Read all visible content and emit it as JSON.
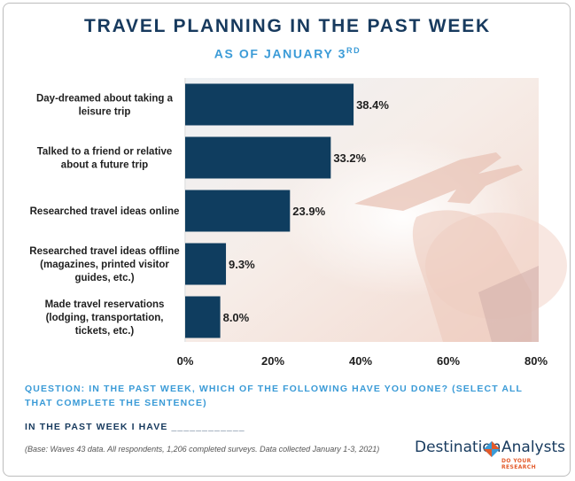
{
  "header": {
    "title": "TRAVEL PLANNING IN THE PAST WEEK",
    "subtitle": "AS OF JANUARY 3",
    "subtitle_suffix": "RD"
  },
  "chart_data": {
    "type": "bar",
    "orientation": "horizontal",
    "title": "TRAVEL PLANNING IN THE PAST WEEK",
    "subtitle": "AS OF JANUARY 3RD",
    "categories": [
      [
        "Day-dreamed about taking a",
        "leisure trip"
      ],
      [
        "Talked to a friend or relative",
        "about a future trip"
      ],
      [
        "Researched travel ideas online"
      ],
      [
        "Researched travel ideas offline",
        "(magazines, printed visitor",
        "guides, etc.)"
      ],
      [
        "Made travel reservations",
        "(lodging, transportation,",
        "tickets, etc.)"
      ]
    ],
    "values": [
      38.4,
      33.2,
      23.9,
      9.3,
      8.0
    ],
    "value_labels": [
      "38.4%",
      "33.2%",
      "23.9%",
      "9.3%",
      "8.0%"
    ],
    "xlim": [
      0,
      80
    ],
    "xticks": [
      0,
      20,
      40,
      60,
      80
    ],
    "xtick_labels": [
      "0%",
      "20%",
      "40%",
      "60%",
      "80%"
    ],
    "grid": false,
    "legend": "none",
    "bar_color": "#0f3d5f"
  },
  "footer": {
    "question": "QUESTION: IN THE PAST WEEK, WHICH OF THE FOLLOWING HAVE YOU DONE? (SELECT ALL THAT COMPLETE THE SENTENCE)",
    "answer_prompt": "IN THE PAST WEEK I HAVE ____________",
    "base_note": "(Base: Waves 43 data. All respondents, 1,206 completed surveys. Data collected January 1-3, 2021)"
  },
  "logo": {
    "word1": "Destination",
    "word2": "Analysts",
    "tagline": "DO YOUR RESEARCH",
    "colors": {
      "navy": "#173a5e",
      "accent_blue": "#3b9bd7",
      "accent_orange": "#e35a2a"
    }
  }
}
